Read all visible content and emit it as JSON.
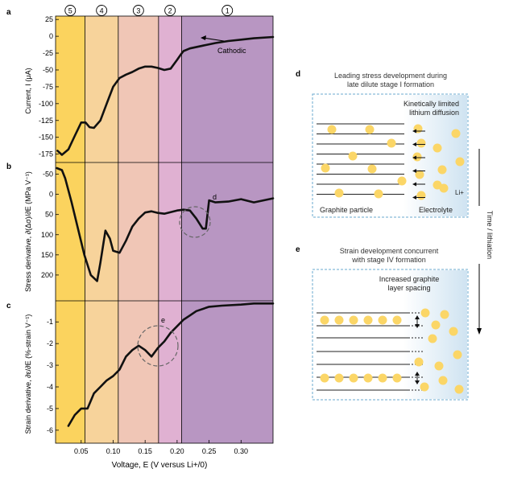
{
  "figure": {
    "panel_labels": [
      "a",
      "b",
      "c",
      "d",
      "e"
    ],
    "region_numbers": [
      "5",
      "4",
      "3",
      "2",
      "1"
    ],
    "region_colors": [
      "#fbd35e",
      "#f7d39b",
      "#f0c6b6",
      "#e0b1d2",
      "#b896c2"
    ],
    "shared_x": {
      "label": "Voltage, E (V versus Li+/0)",
      "ticks": [
        "0.05",
        "0.10",
        "0.15",
        "0.20",
        "0.25",
        "0.30"
      ],
      "region_boundaries_V": [
        0.01,
        0.056,
        0.108,
        0.171,
        0.207,
        0.35
      ]
    }
  },
  "chart_data": [
    {
      "type": "line",
      "panel": "a",
      "xlabel": "Voltage, E (V versus Li+/0)",
      "ylabel": "Current, I (μA)",
      "xlim": [
        0.01,
        0.35
      ],
      "ylim": [
        -185,
        30
      ],
      "yticks": [
        "25",
        "0",
        "-25",
        "-50",
        "-75",
        "-100",
        "-125",
        "-150",
        "-175"
      ],
      "annotation": "Cathodic",
      "series": [
        {
          "name": "current",
          "x": [
            0.013,
            0.02,
            0.03,
            0.04,
            0.05,
            0.057,
            0.063,
            0.07,
            0.08,
            0.09,
            0.1,
            0.11,
            0.12,
            0.13,
            0.14,
            0.15,
            0.16,
            0.17,
            0.18,
            0.19,
            0.2,
            0.205,
            0.21,
            0.22,
            0.24,
            0.26,
            0.28,
            0.3,
            0.32,
            0.35
          ],
          "y": [
            -170,
            -176,
            -168,
            -148,
            -128,
            -128,
            -135,
            -136,
            -125,
            -100,
            -75,
            -62,
            -57,
            -53,
            -48,
            -45,
            -45,
            -47,
            -50,
            -48,
            -35,
            -28,
            -22,
            -18,
            -14,
            -10,
            -7,
            -5,
            -3,
            -1
          ]
        }
      ]
    },
    {
      "type": "line",
      "panel": "b",
      "xlabel": "Voltage, E (V versus Li+/0)",
      "ylabel": "Stress derivative, ∂(Δσ)/∂E (MPa V⁻¹)",
      "xlim": [
        0.01,
        0.35
      ],
      "ylim": [
        -75,
        260
      ],
      "yticks": [
        "-50",
        "0",
        "50",
        "100",
        "150",
        "200"
      ],
      "annotation": "d",
      "series": [
        {
          "name": "stress derivative",
          "x": [
            0.012,
            0.02,
            0.025,
            0.035,
            0.045,
            0.055,
            0.065,
            0.075,
            0.08,
            0.088,
            0.095,
            0.1,
            0.11,
            0.12,
            0.13,
            0.14,
            0.15,
            0.16,
            0.17,
            0.18,
            0.19,
            0.2,
            0.21,
            0.22,
            0.23,
            0.24,
            0.245,
            0.25,
            0.26,
            0.28,
            0.3,
            0.32,
            0.35
          ],
          "y": [
            -65,
            -60,
            -40,
            20,
            85,
            150,
            200,
            215,
            170,
            90,
            110,
            140,
            145,
            115,
            80,
            60,
            45,
            42,
            46,
            48,
            44,
            40,
            38,
            40,
            60,
            85,
            85,
            15,
            20,
            18,
            12,
            20,
            10
          ]
        }
      ]
    },
    {
      "type": "line",
      "panel": "c",
      "xlabel": "Voltage, E (V versus Li+/0)",
      "ylabel": "Strain derivative, ∂ε/∂E (%-strain V⁻¹)",
      "xlim": [
        0.01,
        0.35
      ],
      "ylim": [
        -6.6,
        -0.1
      ],
      "yticks": [
        "-1",
        "-2",
        "-3",
        "-4",
        "-5",
        "-6"
      ],
      "annotation": "e",
      "series": [
        {
          "name": "strain derivative",
          "x": [
            0.03,
            0.04,
            0.05,
            0.06,
            0.07,
            0.08,
            0.09,
            0.1,
            0.11,
            0.12,
            0.13,
            0.14,
            0.15,
            0.16,
            0.17,
            0.18,
            0.19,
            0.2,
            0.21,
            0.22,
            0.23,
            0.25,
            0.27,
            0.3,
            0.32,
            0.35
          ],
          "y": [
            -5.8,
            -5.3,
            -5.0,
            -5.0,
            -4.3,
            -4.0,
            -3.7,
            -3.5,
            -3.2,
            -2.6,
            -2.3,
            -2.1,
            -2.3,
            -2.6,
            -2.2,
            -1.9,
            -1.5,
            -1.2,
            -0.9,
            -0.7,
            -0.5,
            -0.3,
            -0.25,
            -0.2,
            -0.15,
            -0.15
          ]
        }
      ]
    }
  ],
  "schematic_d": {
    "label": "d",
    "title_line1": "Leading stress development during",
    "title_line2": "late dilute stage I formation",
    "inner_line1": "Kinetically limited",
    "inner_line2": "lithium diffusion",
    "ion_label": "Li+",
    "left_label": "Graphite particle",
    "right_label": "Electrolyte"
  },
  "schematic_e": {
    "label": "e",
    "title_line1": "Strain development concurrent",
    "title_line2": "with stage IV formation",
    "inner_line1": "Increased graphite",
    "inner_line2": "layer spacing"
  },
  "time_axis_label": "Time / lithiation"
}
